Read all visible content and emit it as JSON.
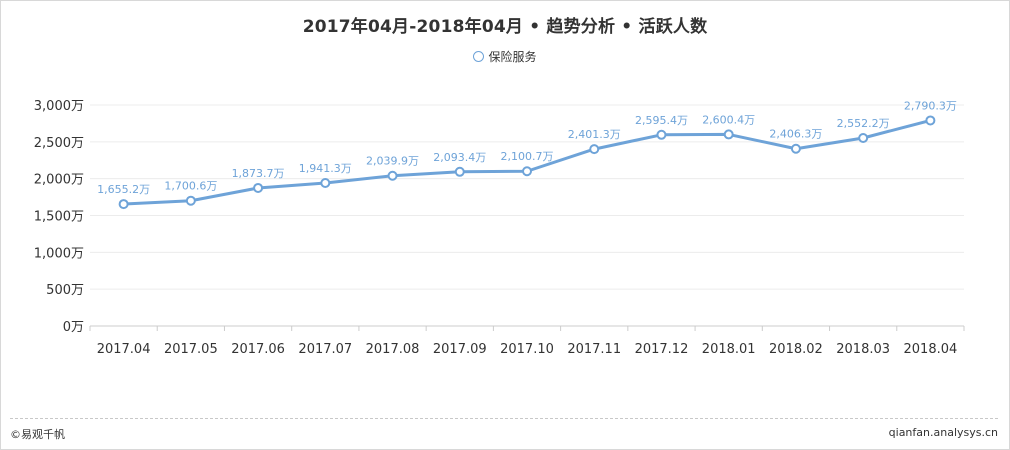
{
  "title": "2017年04月-2018年04月 • 趋势分析 • 活跃人数",
  "legend": {
    "label": "保险服务"
  },
  "footer": {
    "copyright": "©易观千帆",
    "site": "qianfan.analysys.cn"
  },
  "colors": {
    "series": "#6ea3d8",
    "label": "#6ea3d8",
    "axis": "#333333",
    "grid": "#ececec"
  },
  "chart_data": {
    "type": "line",
    "title": "2017年04月-2018年04月 • 趋势分析 • 活跃人数",
    "xlabel": "",
    "ylabel": "",
    "categories": [
      "2017.04",
      "2017.05",
      "2017.06",
      "2017.07",
      "2017.08",
      "2017.09",
      "2017.10",
      "2017.11",
      "2017.12",
      "2018.01",
      "2018.02",
      "2018.03",
      "2018.04"
    ],
    "series": [
      {
        "name": "保险服务",
        "values": [
          1655.2,
          1700.6,
          1873.7,
          1941.3,
          2039.9,
          2093.4,
          2100.7,
          2401.3,
          2595.4,
          2600.4,
          2406.3,
          2552.2,
          2790.3
        ],
        "labels": [
          "1,655.2万",
          "1,700.6万",
          "1,873.7万",
          "1,941.3万",
          "2,039.9万",
          "2,093.4万",
          "2,100.7万",
          "2,401.3万",
          "2,595.4万",
          "2,600.4万",
          "2,406.3万",
          "2,552.2万",
          "2,790.3万"
        ]
      }
    ],
    "y_ticks": [
      0,
      500,
      1000,
      1500,
      2000,
      2500,
      3000
    ],
    "y_tick_labels": [
      "0万",
      "500万",
      "1,000万",
      "1,500万",
      "2,000万",
      "2,500万",
      "3,000万"
    ],
    "ylim": [
      0,
      3000
    ],
    "grid": true,
    "legend_position": "top-center"
  }
}
